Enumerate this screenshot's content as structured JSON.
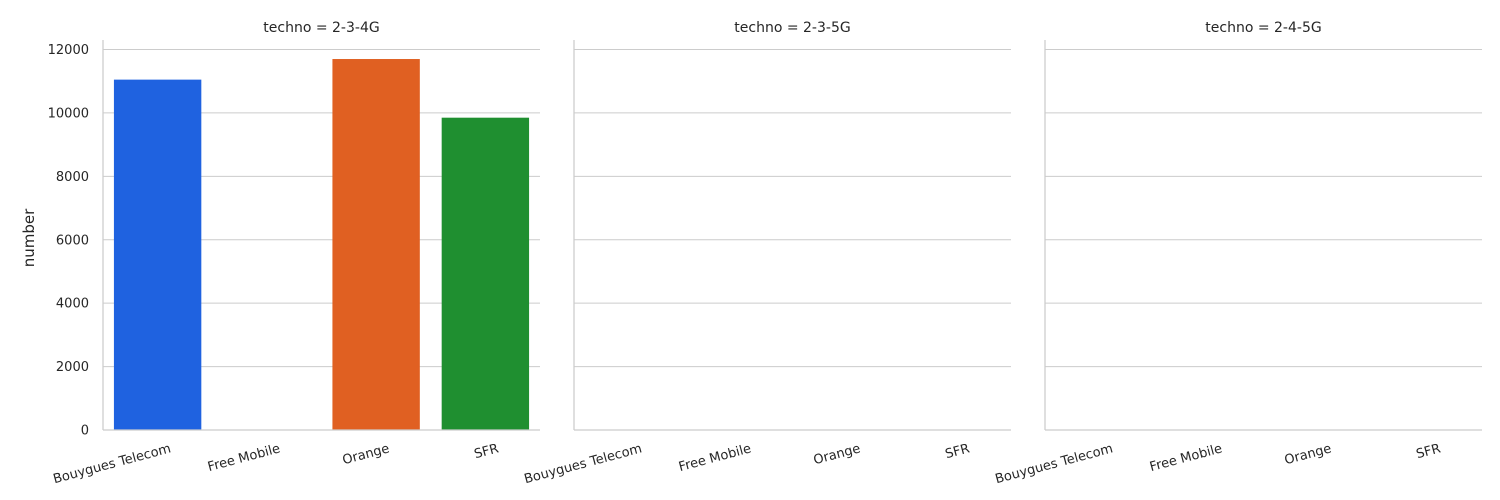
{
  "chart_data": {
    "type": "bar",
    "ylabel": "number",
    "xlabel": "",
    "ylim": [
      0,
      12300
    ],
    "yticks": [
      0,
      2000,
      4000,
      6000,
      8000,
      10000,
      12000
    ],
    "grid": "horizontal",
    "categories": [
      "Bouygues Telecom",
      "Free Mobile",
      "Orange",
      "SFR"
    ],
    "colors": [
      "#1f62e0",
      "#3bb33b",
      "#e06022",
      "#1f8f30"
    ],
    "facets": [
      {
        "title": "techno = 2-3-4G",
        "values": [
          11050,
          0,
          11700,
          9850
        ]
      },
      {
        "title": "techno = 2-3-5G",
        "values": [
          0,
          0,
          0,
          0
        ]
      },
      {
        "title": "techno = 2-4-5G",
        "values": [
          0,
          0,
          0,
          0
        ]
      }
    ]
  }
}
